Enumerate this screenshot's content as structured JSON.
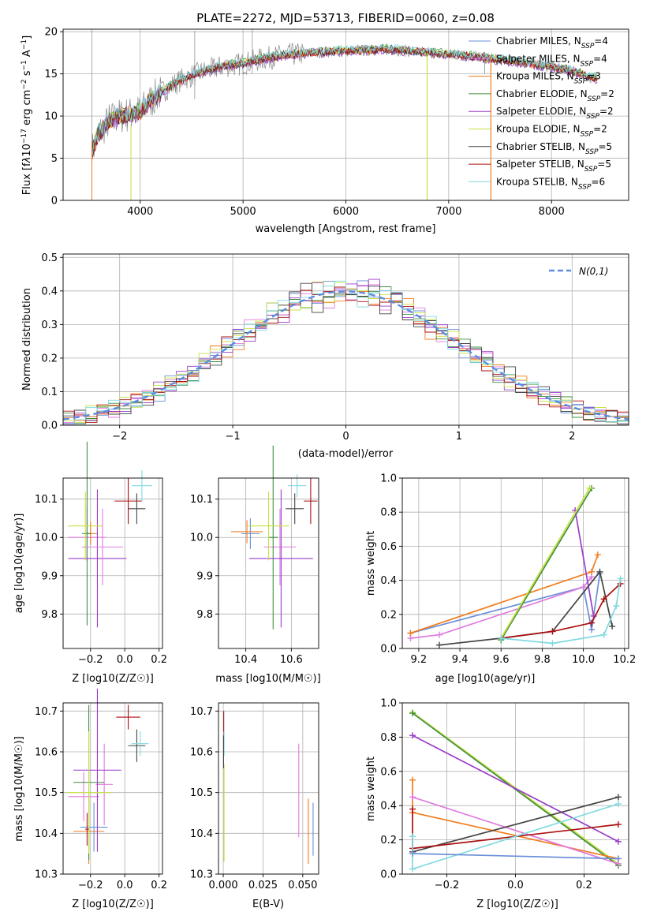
{
  "colors": {
    "chabrier_miles": "#6a8fd8",
    "salpeter_miles": "#e07be0",
    "kroupa_miles": "#f07d20",
    "chabrier_elodie": "#3f8f3f",
    "salpeter_elodie": "#9a3cc9",
    "kroupa_elodie": "#c8e040",
    "chabrier_stelib": "#444444",
    "salpeter_stelib": "#aa1111",
    "kroupa_stelib": "#7fd9e0",
    "data": "#888888"
  },
  "chart_data": [
    {
      "id": "spectrum",
      "type": "line",
      "title": "PLATE=2272, MJD=53713, FIBERID=0060, z=0.08",
      "xlabel": "wavelength [Angstrom, rest frame]",
      "ylabel": "Flux [f_λ10^{-17} erg cm^{-2} s^{-1} A^{-1}]",
      "xlim": [
        3250,
        8750
      ],
      "ylim": [
        0,
        20.3
      ],
      "xticks": [
        "4000",
        "5000",
        "6000",
        "7000",
        "8000"
      ],
      "yticks": [
        "0",
        "5",
        "10",
        "15",
        "20"
      ],
      "grid": true,
      "legend_position": "top-right",
      "legend": [
        {
          "label": "Chabrier MILES, N",
          "sub": "SSP",
          "value": "=4"
        },
        {
          "label": "Salpeter MILES, N",
          "sub": "SSP",
          "value": "=4"
        },
        {
          "label": "Kroupa MILES, N",
          "sub": "SSP",
          "value": "=3"
        },
        {
          "label": "Chabrier ELODIE, N",
          "sub": "SSP",
          "value": "=2"
        },
        {
          "label": "Salpeter ELODIE, N",
          "sub": "SSP",
          "value": "=2"
        },
        {
          "label": "Kroupa ELODIE, N",
          "sub": "SSP",
          "value": "=2"
        },
        {
          "label": "Chabrier STELIB, N",
          "sub": "SSP",
          "value": "=5"
        },
        {
          "label": "Salpeter STELIB, N",
          "sub": "SSP",
          "value": "=5"
        },
        {
          "label": "Kroupa STELIB, N",
          "sub": "SSP",
          "value": "=6"
        }
      ],
      "continuum": {
        "x": [
          3530,
          3600,
          3700,
          3800,
          3900,
          4000,
          4100,
          4200,
          4400,
          4600,
          4800,
          5000,
          5200,
          5400,
          5600,
          5800,
          6000,
          6200,
          6400,
          6600,
          6800,
          7000,
          7200,
          7400,
          7600,
          7800,
          8000,
          8200,
          8400
        ],
        "y": [
          5.8,
          8.0,
          9.5,
          10.0,
          10.2,
          10.5,
          11.8,
          12.8,
          14.3,
          15.2,
          15.9,
          16.2,
          16.8,
          17.2,
          17.4,
          17.6,
          17.7,
          17.8,
          17.9,
          17.7,
          17.5,
          17.3,
          17.1,
          16.8,
          16.5,
          16.2,
          15.8,
          15.3,
          14.5
        ]
      }
    },
    {
      "id": "residuals",
      "type": "bar",
      "xlabel": "(data-model)/error",
      "ylabel": "Normed distribution",
      "xlim": [
        -2.5,
        2.5
      ],
      "ylim": [
        0,
        0.51
      ],
      "xticks": [
        "−2",
        "−1",
        "0",
        "1",
        "2"
      ],
      "yticks": [
        "0.0",
        "0.1",
        "0.2",
        "0.3",
        "0.4",
        "0.5"
      ],
      "grid": true,
      "legend_position": "top-right",
      "gaussian_label": "N(0,1)",
      "bins": {
        "start": -2.5,
        "width": 0.1
      }
    },
    {
      "id": "z_vs_age",
      "type": "scatter",
      "xlabel": "Z [log10(Z/Z☉)]",
      "ylabel": "age [log10(age/yr)]",
      "xlim": [
        -0.36,
        0.22
      ],
      "ylim": [
        9.71,
        10.155
      ],
      "xticks": [
        "−0.2",
        "0.0",
        "0.2"
      ],
      "yticks": [
        "9.8",
        "9.9",
        "10.0",
        "10.1"
      ],
      "points": [
        {
          "series": "chabrier_miles",
          "x": -0.22,
          "y": 10.01,
          "xerr": 0.03,
          "yerr": 0.07
        },
        {
          "series": "salpeter_miles",
          "x": -0.22,
          "y": 10.0,
          "xerr": 0.11,
          "yerr": 0.06
        },
        {
          "series": "kroupa_miles",
          "x": -0.2,
          "y": 10.01,
          "xerr": 0.04,
          "yerr": 0.03
        },
        {
          "series": "chabrier_elodie",
          "x": -0.22,
          "y": 10.01,
          "xerr": 0.02,
          "yerr": 0.24
        },
        {
          "series": "salpeter_elodie",
          "x": -0.16,
          "y": 9.945,
          "xerr": 0.17,
          "yerr": 0.18
        },
        {
          "series": "kroupa_elodie",
          "x": -0.23,
          "y": 10.03,
          "xerr": 0.1,
          "yerr": 0.09
        },
        {
          "series": "chabrier_stelib",
          "x": 0.07,
          "y": 10.075,
          "xerr": 0.05,
          "yerr": 0.04
        },
        {
          "series": "salpeter_stelib",
          "x": 0.02,
          "y": 10.095,
          "xerr": 0.08,
          "yerr": 0.06
        },
        {
          "series": "kroupa_stelib",
          "x": 0.1,
          "y": 10.135,
          "xerr": 0.06,
          "yerr": 0.04
        },
        {
          "series": "salpeter_miles",
          "x": -0.13,
          "y": 9.975,
          "xerr": 0.12,
          "yerr": 0.1
        }
      ]
    },
    {
      "id": "mass_vs_age",
      "type": "scatter",
      "xlabel": "mass [log10(M/M☉)]",
      "ylabel": "",
      "xlim": [
        10.28,
        10.72
      ],
      "ylim": [
        9.71,
        10.155
      ],
      "xticks": [
        "10.4",
        "10.6"
      ],
      "yticks": [
        "9.8",
        "9.9",
        "10.0",
        "10.1"
      ],
      "points": [
        {
          "series": "chabrier_miles",
          "x": 10.42,
          "y": 10.01,
          "xerr": 0.04,
          "yerr": 0.04
        },
        {
          "series": "salpeter_miles",
          "x": 10.55,
          "y": 9.975,
          "xerr": 0.07,
          "yerr": 0.1
        },
        {
          "series": "kroupa_miles",
          "x": 10.405,
          "y": 10.015,
          "xerr": 0.07,
          "yerr": 0.03
        },
        {
          "series": "chabrier_elodie",
          "x": 10.52,
          "y": 10.0,
          "xerr": 0.02,
          "yerr": 0.24
        },
        {
          "series": "salpeter_elodie",
          "x": 10.555,
          "y": 9.945,
          "xerr": 0.14,
          "yerr": 0.18
        },
        {
          "series": "kroupa_elodie",
          "x": 10.5,
          "y": 10.03,
          "xerr": 0.09,
          "yerr": 0.09
        },
        {
          "series": "chabrier_stelib",
          "x": 10.615,
          "y": 10.075,
          "xerr": 0.04,
          "yerr": 0.04
        },
        {
          "series": "salpeter_stelib",
          "x": 10.685,
          "y": 10.095,
          "xerr": 0.03,
          "yerr": 0.06
        },
        {
          "series": "kroupa_stelib",
          "x": 10.625,
          "y": 10.135,
          "xerr": 0.04,
          "yerr": 0.03
        }
      ]
    },
    {
      "id": "age_vs_weight",
      "type": "line",
      "xlabel": "age [log10(age/yr)]",
      "ylabel": "mass weight",
      "xlim": [
        9.12,
        10.22
      ],
      "ylim": [
        0,
        1.0
      ],
      "xticks": [
        "9.2",
        "9.4",
        "9.6",
        "9.8",
        "10.0",
        "10.2"
      ],
      "yticks": [
        "0.0",
        "0.2",
        "0.4",
        "0.6",
        "0.8",
        "1.0"
      ],
      "series": [
        {
          "name": "chabrier_miles",
          "x": [
            9.16,
            10.0,
            10.04,
            10.08
          ],
          "y": [
            0.09,
            0.36,
            0.11,
            0.44
          ]
        },
        {
          "name": "salpeter_miles",
          "x": [
            9.16,
            9.3,
            10.0,
            10.04
          ],
          "y": [
            0.06,
            0.08,
            0.36,
            0.42
          ]
        },
        {
          "name": "kroupa_miles",
          "x": [
            9.16,
            10.04,
            10.07
          ],
          "y": [
            0.09,
            0.45,
            0.55
          ]
        },
        {
          "name": "chabrier_elodie",
          "x": [
            9.6,
            10.04
          ],
          "y": [
            0.05,
            0.94
          ]
        },
        {
          "name": "salpeter_elodie",
          "x": [
            9.96,
            10.05
          ],
          "y": [
            0.81,
            0.19
          ]
        },
        {
          "name": "kroupa_elodie",
          "x": [
            9.6,
            10.03
          ],
          "y": [
            0.06,
            0.94
          ]
        },
        {
          "name": "chabrier_stelib",
          "x": [
            9.3,
            9.6,
            9.85,
            10.08,
            10.14
          ],
          "y": [
            0.02,
            0.06,
            0.1,
            0.45,
            0.13
          ]
        },
        {
          "name": "salpeter_stelib",
          "x": [
            9.6,
            9.85,
            10.04,
            10.1,
            10.18
          ],
          "y": [
            0.06,
            0.1,
            0.15,
            0.29,
            0.38
          ]
        },
        {
          "name": "kroupa_stelib",
          "x": [
            9.6,
            9.85,
            10.1,
            10.16,
            10.18
          ],
          "y": [
            0.06,
            0.03,
            0.08,
            0.25,
            0.41
          ]
        }
      ]
    },
    {
      "id": "z_vs_mass",
      "type": "scatter",
      "xlabel": "Z [log10(Z/Z☉)]",
      "ylabel": "mass [log10(M/M☉)]",
      "xlim": [
        -0.36,
        0.22
      ],
      "ylim": [
        10.3,
        10.72
      ],
      "xticks": [
        "−0.2",
        "0.0",
        "0.2"
      ],
      "yticks": [
        "10.3",
        "10.4",
        "10.5",
        "10.6",
        "10.7"
      ],
      "points": [
        {
          "series": "chabrier_miles",
          "x": -0.18,
          "y": 10.415,
          "xerr": 0.08,
          "yerr": 0.06
        },
        {
          "series": "salpeter_miles",
          "x": -0.24,
          "y": 10.49,
          "xerr": 0.09,
          "yerr": 0.06
        },
        {
          "series": "salpeter_miles",
          "x": -0.12,
          "y": 10.52,
          "xerr": 0.05,
          "yerr": 0.1
        },
        {
          "series": "kroupa_miles",
          "x": -0.21,
          "y": 10.405,
          "xerr": 0.09,
          "yerr": 0.08
        },
        {
          "series": "chabrier_elodie",
          "x": -0.21,
          "y": 10.525,
          "xerr": 0.09,
          "yerr": 0.19
        },
        {
          "series": "salpeter_elodie",
          "x": -0.16,
          "y": 10.555,
          "xerr": 0.14,
          "yerr": 0.2
        },
        {
          "series": "kroupa_elodie",
          "x": -0.21,
          "y": 10.5,
          "xerr": 0.13,
          "yerr": 0.15
        },
        {
          "series": "chabrier_stelib",
          "x": 0.07,
          "y": 10.615,
          "xerr": 0.05,
          "yerr": 0.04
        },
        {
          "series": "salpeter_stelib",
          "x": 0.02,
          "y": 10.685,
          "xerr": 0.07,
          "yerr": 0.03
        },
        {
          "series": "kroupa_stelib",
          "x": 0.09,
          "y": 10.62,
          "xerr": 0.05,
          "yerr": 0.03
        },
        {
          "series": "salpeter_stelib",
          "x": -0.22,
          "y": 10.41,
          "xerr": 0.01,
          "yerr": 0.04
        }
      ]
    },
    {
      "id": "ebv_vs_mass",
      "type": "scatter",
      "xlabel": "E(B-V)",
      "ylabel": "",
      "xlim": [
        -0.003,
        0.06
      ],
      "ylim": [
        10.3,
        10.72
      ],
      "xticks": [
        "0.000",
        "0.025",
        "0.050"
      ],
      "yticks": [
        "10.3",
        "10.4",
        "10.5",
        "10.6",
        "10.7"
      ],
      "points": [
        {
          "series": "salpeter_stelib",
          "x": 0.0003,
          "y": 10.65,
          "xerr": 0.0002,
          "yerr": 0.05
        },
        {
          "series": "kroupa_stelib",
          "x": 0.0005,
          "y": 10.62,
          "xerr": 0.0002,
          "yerr": 0.03
        },
        {
          "series": "kroupa_elodie",
          "x": 0.0005,
          "y": 10.45,
          "xerr": 0.0002,
          "yerr": 0.12
        },
        {
          "series": "chabrier_stelib",
          "x": 0.0002,
          "y": 10.6,
          "xerr": 0.0001,
          "yerr": 0.04
        },
        {
          "series": "salpeter_miles",
          "x": 0.0475,
          "y": 10.505,
          "xerr": 0.0001,
          "yerr": 0.115
        },
        {
          "series": "kroupa_miles",
          "x": 0.0535,
          "y": 10.405,
          "xerr": 0.0001,
          "yerr": 0.08
        },
        {
          "series": "chabrier_miles",
          "x": 0.0565,
          "y": 10.41,
          "xerr": 0.0001,
          "yerr": 0.065
        }
      ]
    },
    {
      "id": "z_vs_weight",
      "type": "line",
      "xlabel": "Z [log10(Z/Z☉)]",
      "ylabel": "mass weight",
      "xlim": [
        -0.33,
        0.33
      ],
      "ylim": [
        0,
        1.0
      ],
      "xticks": [
        "−0.2",
        "0.0",
        "0.2"
      ],
      "yticks": [
        "0.0",
        "0.2",
        "0.4",
        "0.6",
        "0.8",
        "1.0"
      ],
      "series": [
        {
          "name": "kroupa_elodie",
          "x": [
            -0.3,
            0.3
          ],
          "y": [
            0.945,
            0.06
          ]
        },
        {
          "name": "chabrier_elodie",
          "x": [
            -0.3,
            0.3
          ],
          "y": [
            0.94,
            0.05
          ]
        },
        {
          "name": "salpeter_elodie",
          "x": [
            -0.3,
            0.3
          ],
          "y": [
            0.81,
            0.19
          ]
        },
        {
          "name": "kroupa_miles",
          "x": [
            -0.3,
            -0.3,
            0.3
          ],
          "y": [
            0.55,
            0.36,
            0.09
          ]
        },
        {
          "name": "salpeter_miles",
          "x": [
            -0.3,
            0.3
          ],
          "y": [
            0.45,
            0.06
          ]
        },
        {
          "name": "chabrier_stelib",
          "x": [
            -0.3,
            0.3
          ],
          "y": [
            0.13,
            0.45
          ]
        },
        {
          "name": "salpeter_stelib",
          "x": [
            -0.3,
            -0.3,
            0.3
          ],
          "y": [
            0.38,
            0.15,
            0.29
          ]
        },
        {
          "name": "kroupa_stelib",
          "x": [
            -0.3,
            -0.3,
            0.3
          ],
          "y": [
            0.22,
            0.03,
            0.41
          ]
        },
        {
          "name": "chabrier_miles",
          "x": [
            -0.3,
            0.3
          ],
          "y": [
            0.12,
            0.09
          ]
        }
      ]
    }
  ]
}
